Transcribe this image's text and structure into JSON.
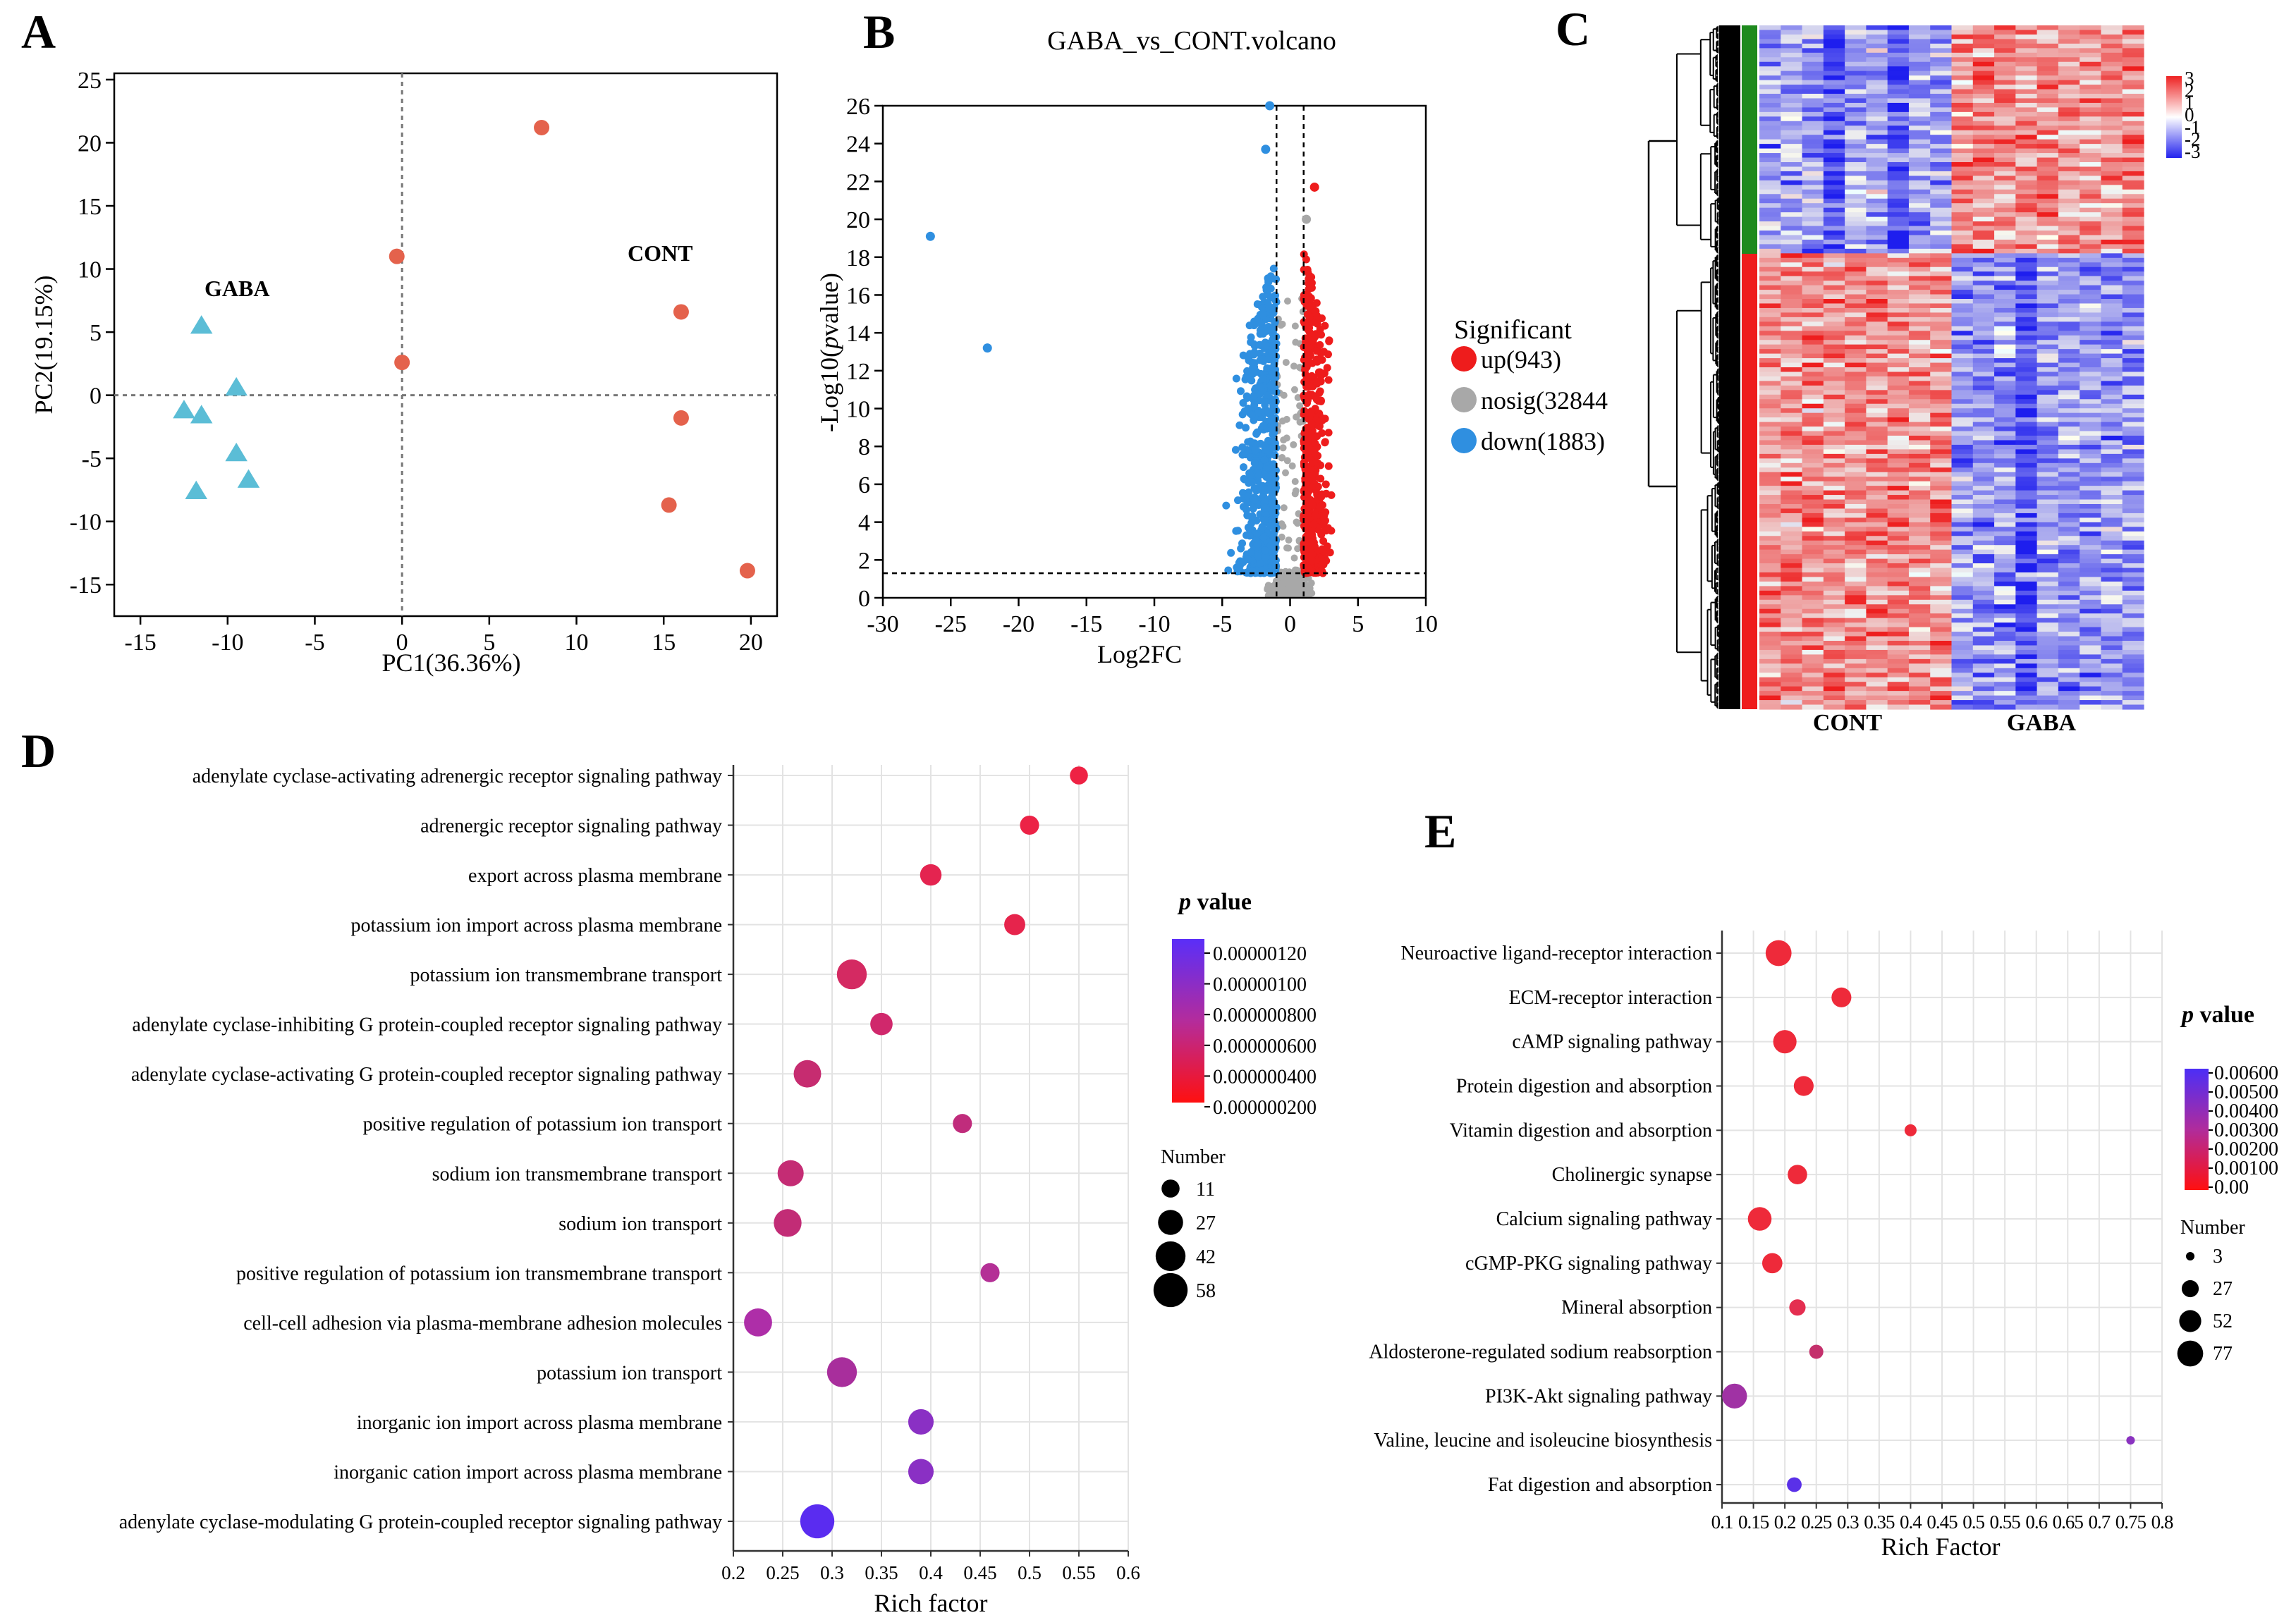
{
  "chart_data": [
    {
      "id": "A",
      "type": "scatter",
      "panel_label": "A",
      "xlabel": "PC1(36.36%)",
      "ylabel": "PC2(19.15%)",
      "xlim": [
        -16.5,
        21.5
      ],
      "ylim": [
        -17.5,
        25.5
      ],
      "xticks": [
        -15,
        -10,
        -5,
        0,
        5,
        10,
        15,
        20
      ],
      "yticks": [
        -15,
        -10,
        -5,
        0,
        5,
        10,
        15,
        20,
        25
      ],
      "xtick_labels": [
        "-15",
        "-10",
        "-5",
        "0",
        "5",
        "10",
        "15",
        "20"
      ],
      "ytick_labels": [
        "-15",
        "-10",
        "-5",
        "0",
        "5",
        "10",
        "15",
        "20",
        "25"
      ],
      "annotations": [
        "GABA",
        "CONT"
      ],
      "series": [
        {
          "name": "GABA",
          "marker": "triangle",
          "color": "#5bbdd6",
          "x": [
            -11.5,
            -9.5,
            -12.5,
            -11.5,
            -9.5,
            -8.8,
            -11.8
          ],
          "y": [
            5.5,
            0.6,
            -1.2,
            -1.6,
            -4.6,
            -6.7,
            -7.6
          ]
        },
        {
          "name": "CONT",
          "marker": "circle",
          "color": "#e4624c",
          "x": [
            8.0,
            -0.3,
            0.0,
            16.0,
            16.0,
            15.3,
            19.8
          ],
          "y": [
            21.2,
            11.0,
            2.6,
            6.6,
            -1.8,
            -8.7,
            -13.9
          ]
        }
      ]
    },
    {
      "id": "B",
      "type": "scatter",
      "panel_label": "B",
      "title": "GABA_vs_CONT.volcano",
      "xlabel": "Log2FC",
      "ylabel_prefix": "-Log10(",
      "ylabel_italic": "p",
      "ylabel_suffix": "value)",
      "xlim": [
        -30,
        10
      ],
      "ylim": [
        0,
        26
      ],
      "xticks": [
        -30,
        -25,
        -20,
        -15,
        -10,
        -5,
        0,
        5,
        10
      ],
      "yticks": [
        0,
        2,
        4,
        6,
        8,
        10,
        12,
        14,
        16,
        18,
        20,
        22,
        24,
        26
      ],
      "xtick_labels": [
        "-30",
        "-25",
        "-20",
        "-15",
        "-10",
        "-5",
        "0",
        "5",
        "10"
      ],
      "ytick_labels": [
        "0",
        "2",
        "4",
        "6",
        "8",
        "10",
        "12",
        "14",
        "16",
        "18",
        "20",
        "22",
        "24",
        "26"
      ],
      "threshold_x": [
        -1,
        1
      ],
      "threshold_y": 1.3,
      "legend_title": "Significant",
      "legend": [
        {
          "label": "up(943)",
          "color": "#ee1c1c"
        },
        {
          "label": "nosig(32844",
          "color": "#a8a8a8"
        },
        {
          "label": "down(1883)",
          "color": "#2f8fe0"
        }
      ],
      "highlight_points": [
        {
          "x": -26.5,
          "y": 19.1,
          "group": "down"
        },
        {
          "x": -22.3,
          "y": 13.2,
          "group": "down"
        },
        {
          "x": -1.5,
          "y": 26.0,
          "group": "down"
        },
        {
          "x": -1.8,
          "y": 23.7,
          "group": "down"
        },
        {
          "x": 1.8,
          "y": 21.7,
          "group": "up"
        },
        {
          "x": 1.2,
          "y": 20.0,
          "group": "nosig"
        }
      ]
    },
    {
      "id": "C",
      "type": "heatmap",
      "panel_label": "C",
      "column_groups": [
        "CONT",
        "GABA"
      ],
      "colorbar_ticks": [
        "3",
        "2",
        "1",
        "0",
        "-1",
        "-2",
        "-3"
      ],
      "colorbar_colors": [
        "#ee2222",
        "#ffffff",
        "#2222ee"
      ]
    },
    {
      "id": "D",
      "type": "scatter",
      "panel_label": "D",
      "xlabel": "Rich factor",
      "xlim": [
        0.2,
        0.6
      ],
      "xticks": [
        0.2,
        0.25,
        0.3,
        0.35,
        0.4,
        0.45,
        0.5,
        0.55,
        0.6
      ],
      "xtick_labels": [
        "0.2",
        "0.25",
        "0.3",
        "0.35",
        "0.4",
        "0.45",
        "0.5",
        "0.55",
        "0.6"
      ],
      "color_legend_title_italic": "p",
      "color_legend_title_rest": " value",
      "color_legend_ticks": [
        "0.00000120",
        "0.00000100",
        "0.000000800",
        "0.000000600",
        "0.000000400",
        "0.000000200"
      ],
      "size_legend_title": "Number",
      "size_legend": [
        "11",
        "27",
        "42",
        "58"
      ],
      "terms": [
        {
          "label": "adenylate cyclase-activating adrenergic receptor signaling pathway",
          "rich": 0.55,
          "number": 11,
          "color": "#ee2244"
        },
        {
          "label": "adrenergic receptor signaling pathway",
          "rich": 0.5,
          "number": 13,
          "color": "#ec2246"
        },
        {
          "label": "export across plasma membrane",
          "rich": 0.4,
          "number": 18,
          "color": "#e42450"
        },
        {
          "label": "potassium ion import across plasma membrane",
          "rich": 0.485,
          "number": 17,
          "color": "#e6244c"
        },
        {
          "label": "potassium ion transmembrane transport",
          "rich": 0.32,
          "number": 42,
          "color": "#d42a62"
        },
        {
          "label": "adenylate cyclase-inhibiting G protein-coupled receptor signaling pathway",
          "rich": 0.35,
          "number": 20,
          "color": "#d0286c"
        },
        {
          "label": "adenylate cyclase-activating G protein-coupled receptor signaling pathway",
          "rich": 0.275,
          "number": 34,
          "color": "#c62c70"
        },
        {
          "label": "positive regulation of potassium ion transport",
          "rich": 0.432,
          "number": 13,
          "color": "#c02c7c"
        },
        {
          "label": "sodium ion transmembrane transport",
          "rich": 0.258,
          "number": 30,
          "color": "#c42c74"
        },
        {
          "label": "sodium ion transport",
          "rich": 0.255,
          "number": 35,
          "color": "#c22c76"
        },
        {
          "label": "positive regulation of potassium ion transmembrane transport",
          "rich": 0.46,
          "number": 13,
          "color": "#b43096"
        },
        {
          "label": "cell-cell adhesion via plasma-membrane adhesion molecules",
          "rich": 0.225,
          "number": 36,
          "color": "#ae2ea8"
        },
        {
          "label": "potassium ion transport",
          "rich": 0.31,
          "number": 42,
          "color": "#a82e9c"
        },
        {
          "label": "inorganic ion import across plasma membrane",
          "rich": 0.39,
          "number": 28,
          "color": "#8a30c4"
        },
        {
          "label": "inorganic cation import across plasma membrane",
          "rich": 0.39,
          "number": 28,
          "color": "#8a30c4"
        },
        {
          "label": "adenylate cyclase-modulating G protein-coupled receptor signaling pathway",
          "rich": 0.285,
          "number": 58,
          "color": "#5a2cf0"
        }
      ]
    },
    {
      "id": "E",
      "type": "scatter",
      "panel_label": "E",
      "xlabel": "Rich Factor",
      "xlim": [
        0.1,
        0.8
      ],
      "xticks": [
        0.1,
        0.15,
        0.2,
        0.25,
        0.3,
        0.35,
        0.4,
        0.45,
        0.5,
        0.55,
        0.6,
        0.65,
        0.7,
        0.75,
        0.8
      ],
      "xtick_labels": [
        "0.1",
        "0.15",
        "0.2",
        "0.25",
        "0.3",
        "0.35",
        "0.4",
        "0.45",
        "0.5",
        "0.55",
        "0.6",
        "0.65",
        "0.7",
        "0.75",
        "0.8"
      ],
      "color_legend_title_italic": "p",
      "color_legend_title_rest": " value",
      "color_legend_ticks": [
        "0.00600",
        "0.00500",
        "0.00400",
        "0.00300",
        "0.00200",
        "0.00100",
        "0.00"
      ],
      "size_legend_title": "Number",
      "size_legend": [
        "3",
        "27",
        "52",
        "77"
      ],
      "terms": [
        {
          "label": "Neuroactive ligand-receptor interaction",
          "rich": 0.19,
          "number": 77,
          "color": "#ee2a3a"
        },
        {
          "label": "ECM-receptor interaction",
          "rich": 0.29,
          "number": 40,
          "color": "#ee2a3a"
        },
        {
          "label": "cAMP signaling pathway",
          "rich": 0.2,
          "number": 60,
          "color": "#ee2a3a"
        },
        {
          "label": "Protein digestion and absorption",
          "rich": 0.23,
          "number": 40,
          "color": "#ee2a3a"
        },
        {
          "label": "Vitamin digestion and absorption",
          "rich": 0.4,
          "number": 10,
          "color": "#ee2a3a"
        },
        {
          "label": "Cholinergic synapse",
          "rich": 0.22,
          "number": 38,
          "color": "#ee2a3a"
        },
        {
          "label": "Calcium signaling pathway",
          "rich": 0.16,
          "number": 62,
          "color": "#ee2a3a"
        },
        {
          "label": "cGMP-PKG signaling pathway",
          "rich": 0.18,
          "number": 42,
          "color": "#ee2a3a"
        },
        {
          "label": "Mineral absorption",
          "rich": 0.22,
          "number": 24,
          "color": "#e42e50"
        },
        {
          "label": "Aldosterone-regulated sodium reabsorption",
          "rich": 0.25,
          "number": 16,
          "color": "#c4306c"
        },
        {
          "label": "PI3K-Akt signaling pathway",
          "rich": 0.12,
          "number": 70,
          "color": "#a032a4"
        },
        {
          "label": "Valine, leucine and isoleucine biosynthesis",
          "rich": 0.75,
          "number": 3,
          "color": "#8a32c0"
        },
        {
          "label": "Fat digestion and absorption",
          "rich": 0.215,
          "number": 18,
          "color": "#5a30e8"
        }
      ]
    }
  ]
}
